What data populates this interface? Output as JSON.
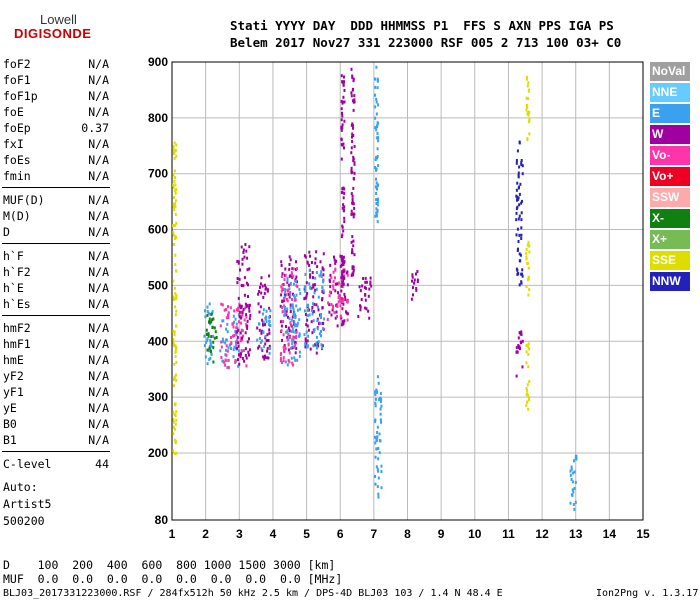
{
  "logo": {
    "line1": "Lowell",
    "line2": "DIGISONDE"
  },
  "header": {
    "labels": "Stati YYYY DAY  DDD HHMMSS P1  FFS S AXN PPS IGA PS",
    "values": "Belem 2017 Nov27 331 223000 RSF 005 2 713 100 03+ C0"
  },
  "params": {
    "group1": [
      {
        "label": "foF2",
        "value": "N/A"
      },
      {
        "label": "foF1",
        "value": "N/A"
      },
      {
        "label": "foF1p",
        "value": "N/A"
      },
      {
        "label": "foE",
        "value": "N/A"
      },
      {
        "label": "foEp",
        "value": "0.37"
      },
      {
        "label": "fxI",
        "value": "N/A"
      },
      {
        "label": "foEs",
        "value": "N/A"
      },
      {
        "label": "fmin",
        "value": "N/A"
      }
    ],
    "group2": [
      {
        "label": "MUF(D)",
        "value": "N/A"
      },
      {
        "label": "M(D)",
        "value": "N/A"
      },
      {
        "label": "D",
        "value": "N/A"
      }
    ],
    "group3": [
      {
        "label": "h`F",
        "value": "N/A"
      },
      {
        "label": "h`F2",
        "value": "N/A"
      },
      {
        "label": "h`E",
        "value": "N/A"
      },
      {
        "label": "h`Es",
        "value": "N/A"
      }
    ],
    "group4": [
      {
        "label": "hmF2",
        "value": "N/A"
      },
      {
        "label": "hmF1",
        "value": "N/A"
      },
      {
        "label": "hmE",
        "value": "N/A"
      },
      {
        "label": "yF2",
        "value": "N/A"
      },
      {
        "label": "yF1",
        "value": "N/A"
      },
      {
        "label": "yE",
        "value": "N/A"
      },
      {
        "label": "B0",
        "value": "N/A"
      },
      {
        "label": "B1",
        "value": "N/A"
      }
    ],
    "clevel": {
      "label": "C-level",
      "value": "44"
    }
  },
  "auto": {
    "line1": "Auto:",
    "line2": "Artist5",
    "line3": "500200"
  },
  "dmuf": {
    "d_row": "D    100  200  400  600  800 1000 1500 3000 [km]",
    "muf_row": "MUF  0.0  0.0  0.0  0.0  0.0  0.0  0.0  0.0 [MHz]"
  },
  "footer": {
    "left": "BLJ03_2017331223000.RSF / 284fx512h 50 kHz 2.5 km / DPS-4D BLJ03 103 / 1.4 N 48.4 E",
    "right": "Ion2Png v. 1.3.17"
  },
  "legend": [
    {
      "label": "NoVal",
      "color": "#a0a0a0"
    },
    {
      "label": "NNE",
      "color": "#66ccff"
    },
    {
      "label": "E",
      "color": "#3aa0f0"
    },
    {
      "label": "W",
      "color": "#a000a0"
    },
    {
      "label": "Vo-",
      "color": "#ff33aa"
    },
    {
      "label": "Vo+",
      "color": "#ee0022"
    },
    {
      "label": "SSW",
      "color": "#ffaaaa"
    },
    {
      "label": "X-",
      "color": "#108010"
    },
    {
      "label": "X+",
      "color": "#77bb55"
    },
    {
      "label": "SSE",
      "color": "#dddd00"
    },
    {
      "label": "NNW",
      "color": "#2222bb"
    }
  ],
  "chart_data": {
    "type": "scatter",
    "xlabel": "",
    "ylabel": "",
    "xlim": [
      1,
      15
    ],
    "ylim": [
      80,
      900
    ],
    "x_ticks": [
      1,
      2,
      3,
      4,
      5,
      6,
      7,
      8,
      9,
      10,
      11,
      12,
      13,
      14,
      15
    ],
    "y_ticks": [
      80,
      200,
      300,
      400,
      500,
      600,
      700,
      800,
      900
    ],
    "grid": true,
    "clusters": [
      {
        "x_range": [
          1.9,
          2.2
        ],
        "h_range": [
          360,
          470
        ],
        "color": "#3aa0f0"
      },
      {
        "x_range": [
          2.0,
          2.3
        ],
        "h_range": [
          365,
          455
        ],
        "color": "#108010"
      },
      {
        "x_range": [
          2.4,
          3.1
        ],
        "h_range": [
          355,
          450
        ],
        "color": "#3aa0f0"
      },
      {
        "x_range": [
          2.4,
          3.2
        ],
        "h_range": [
          355,
          470
        ],
        "color": "#ff33aa"
      },
      {
        "x_range": [
          2.9,
          3.3
        ],
        "h_range": [
          360,
          580
        ],
        "color": "#a000a0"
      },
      {
        "x_range": [
          3.5,
          3.9
        ],
        "h_range": [
          370,
          520
        ],
        "color": "#a000a0"
      },
      {
        "x_range": [
          3.5,
          3.9
        ],
        "h_range": [
          380,
          460
        ],
        "color": "#3aa0f0"
      },
      {
        "x_range": [
          4.2,
          4.7
        ],
        "h_range": [
          380,
          560
        ],
        "color": "#a000a0"
      },
      {
        "x_range": [
          4.2,
          4.7
        ],
        "h_range": [
          360,
          540
        ],
        "color": "#ff33aa"
      },
      {
        "x_range": [
          4.3,
          4.8
        ],
        "h_range": [
          360,
          520
        ],
        "color": "#3aa0f0"
      },
      {
        "x_range": [
          4.9,
          5.5
        ],
        "h_range": [
          380,
          570
        ],
        "color": "#a000a0"
      },
      {
        "x_range": [
          4.9,
          5.5
        ],
        "h_range": [
          390,
          530
        ],
        "color": "#3aa0f0"
      },
      {
        "x_range": [
          5.6,
          6.2
        ],
        "h_range": [
          430,
          560
        ],
        "color": "#a000a0"
      },
      {
        "x_range": [
          5.6,
          6.2
        ],
        "h_range": [
          440,
          540
        ],
        "color": "#ff33aa"
      },
      {
        "x_range": [
          6.0,
          6.1
        ],
        "h_range": [
          500,
          880
        ],
        "color": "#a000a0"
      },
      {
        "x_range": [
          6.3,
          6.4
        ],
        "h_range": [
          520,
          895
        ],
        "color": "#a000a0"
      },
      {
        "x_range": [
          6.5,
          6.9
        ],
        "h_range": [
          440,
          520
        ],
        "color": "#a000a0"
      },
      {
        "x_range": [
          7.0,
          7.2
        ],
        "h_range": [
          120,
          340
        ],
        "color": "#3aa0f0"
      },
      {
        "x_range": [
          8.1,
          8.3
        ],
        "h_range": [
          470,
          530
        ],
        "color": "#a000a0"
      },
      {
        "x_range": [
          11.2,
          11.4
        ],
        "h_range": [
          500,
          760
        ],
        "color": "#2222bb"
      },
      {
        "x_range": [
          11.2,
          11.4
        ],
        "h_range": [
          340,
          420
        ],
        "color": "#a000a0"
      },
      {
        "x_range": [
          11.5,
          11.6
        ],
        "h_range": [
          280,
          400
        ],
        "color": "#dddd00"
      },
      {
        "x_range": [
          11.5,
          11.6
        ],
        "h_range": [
          480,
          580
        ],
        "color": "#dddd00"
      },
      {
        "x_range": [
          11.5,
          11.6
        ],
        "h_range": [
          760,
          880
        ],
        "color": "#dddd00"
      },
      {
        "x_range": [
          1.0,
          1.1
        ],
        "h_range": [
          200,
          760
        ],
        "color": "#dddd00"
      },
      {
        "x_range": [
          7.0,
          7.1
        ],
        "h_range": [
          600,
          900
        ],
        "color": "#3aa0f0"
      },
      {
        "x_range": [
          12.8,
          13.0
        ],
        "h_range": [
          100,
          200
        ],
        "color": "#3aa0f0"
      }
    ]
  }
}
